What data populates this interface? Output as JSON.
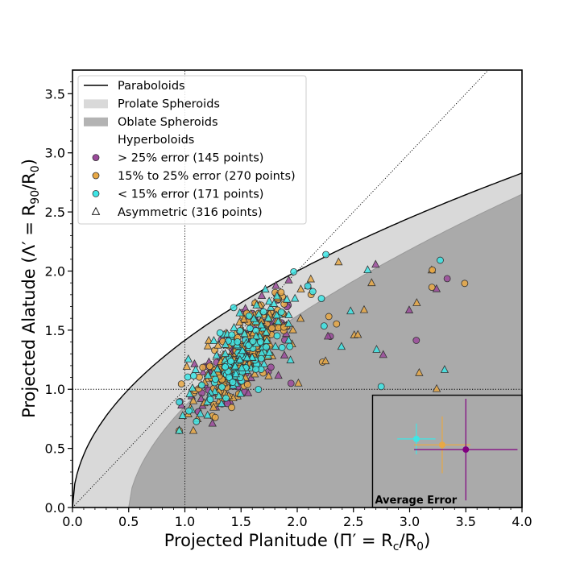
{
  "chart_data": {
    "type": "scatter",
    "xlabel_main": "Projected Planitude",
    "xlabel_math": "(Π′ = R",
    "xlabel_sub": "c",
    "xlabel_mid": "/R",
    "xlabel_sub2": "0",
    "xlabel_end": ")",
    "ylabel_main": "Projected Alatude",
    "ylabel_math": "(Λ′ = R",
    "ylabel_sub": "90",
    "ylabel_mid": "/R",
    "ylabel_sub2": "0",
    "ylabel_end": ")",
    "xlim": [
      0.0,
      4.0
    ],
    "ylim": [
      0.0,
      3.7
    ],
    "x_ticks": [
      "0.0",
      "0.5",
      "1.0",
      "1.5",
      "2.0",
      "2.5",
      "3.0",
      "3.5",
      "4.0"
    ],
    "y_ticks": [
      "0.0",
      "0.5",
      "1.0",
      "1.5",
      "2.0",
      "2.5",
      "3.0",
      "3.5"
    ],
    "grid": false,
    "legend_position": "top-left",
    "legend": [
      {
        "label": "Paraboloids",
        "kind": "line",
        "color": "#000000"
      },
      {
        "label": "Prolate Spheroids",
        "kind": "patch",
        "color": "#d9d9d9"
      },
      {
        "label": "Oblate Spheroids",
        "kind": "patch",
        "color": "#b3b3b3"
      },
      {
        "label": "Hyperboloids",
        "kind": "none",
        "color": "#ffffff"
      },
      {
        "label": "> 25% error (145 points)",
        "kind": "circle",
        "color": "#9b4a9b"
      },
      {
        "label": "15% to 25% error (270 points)",
        "kind": "circle",
        "color": "#e8a845"
      },
      {
        "label": "< 15% error (171 points)",
        "kind": "circle",
        "color": "#3ee6e6"
      },
      {
        "label": "Asymmetric (316 points)",
        "kind": "triangle",
        "color": "#ffffff"
      }
    ],
    "colors": {
      "high_error": "#9b4a9b",
      "mid_error": "#e8a845",
      "low_error": "#3ee6e6",
      "prolate": "#d9d9d9",
      "oblate": "#aaaaaa",
      "inset": "#aaaaaa"
    },
    "reference_lines": {
      "vertical_x": 1.0,
      "horizontal_y": 1.0,
      "diagonal": "y = x"
    },
    "paraboloid_curve": "y = sqrt(2x)",
    "oblate_boundary_start_x": 0.5,
    "oblate_boundary_end": [
      4.0,
      2.65
    ],
    "average_error": {
      "label": "Average Error",
      "x_range": [
        2.67,
        4.0
      ],
      "y_range": [
        0.0,
        0.95
      ],
      "markers": [
        {
          "group": "low",
          "x": 3.06,
          "y": 0.58,
          "xerr": 0.17,
          "yerr": 0.13
        },
        {
          "group": "mid",
          "x": 3.29,
          "y": 0.53,
          "xerr": 0.25,
          "yerr": 0.24
        },
        {
          "group": "high",
          "x": 3.5,
          "y": 0.49,
          "xerr": 0.46,
          "yerr": 0.43
        }
      ]
    },
    "series_seed": 7
  }
}
